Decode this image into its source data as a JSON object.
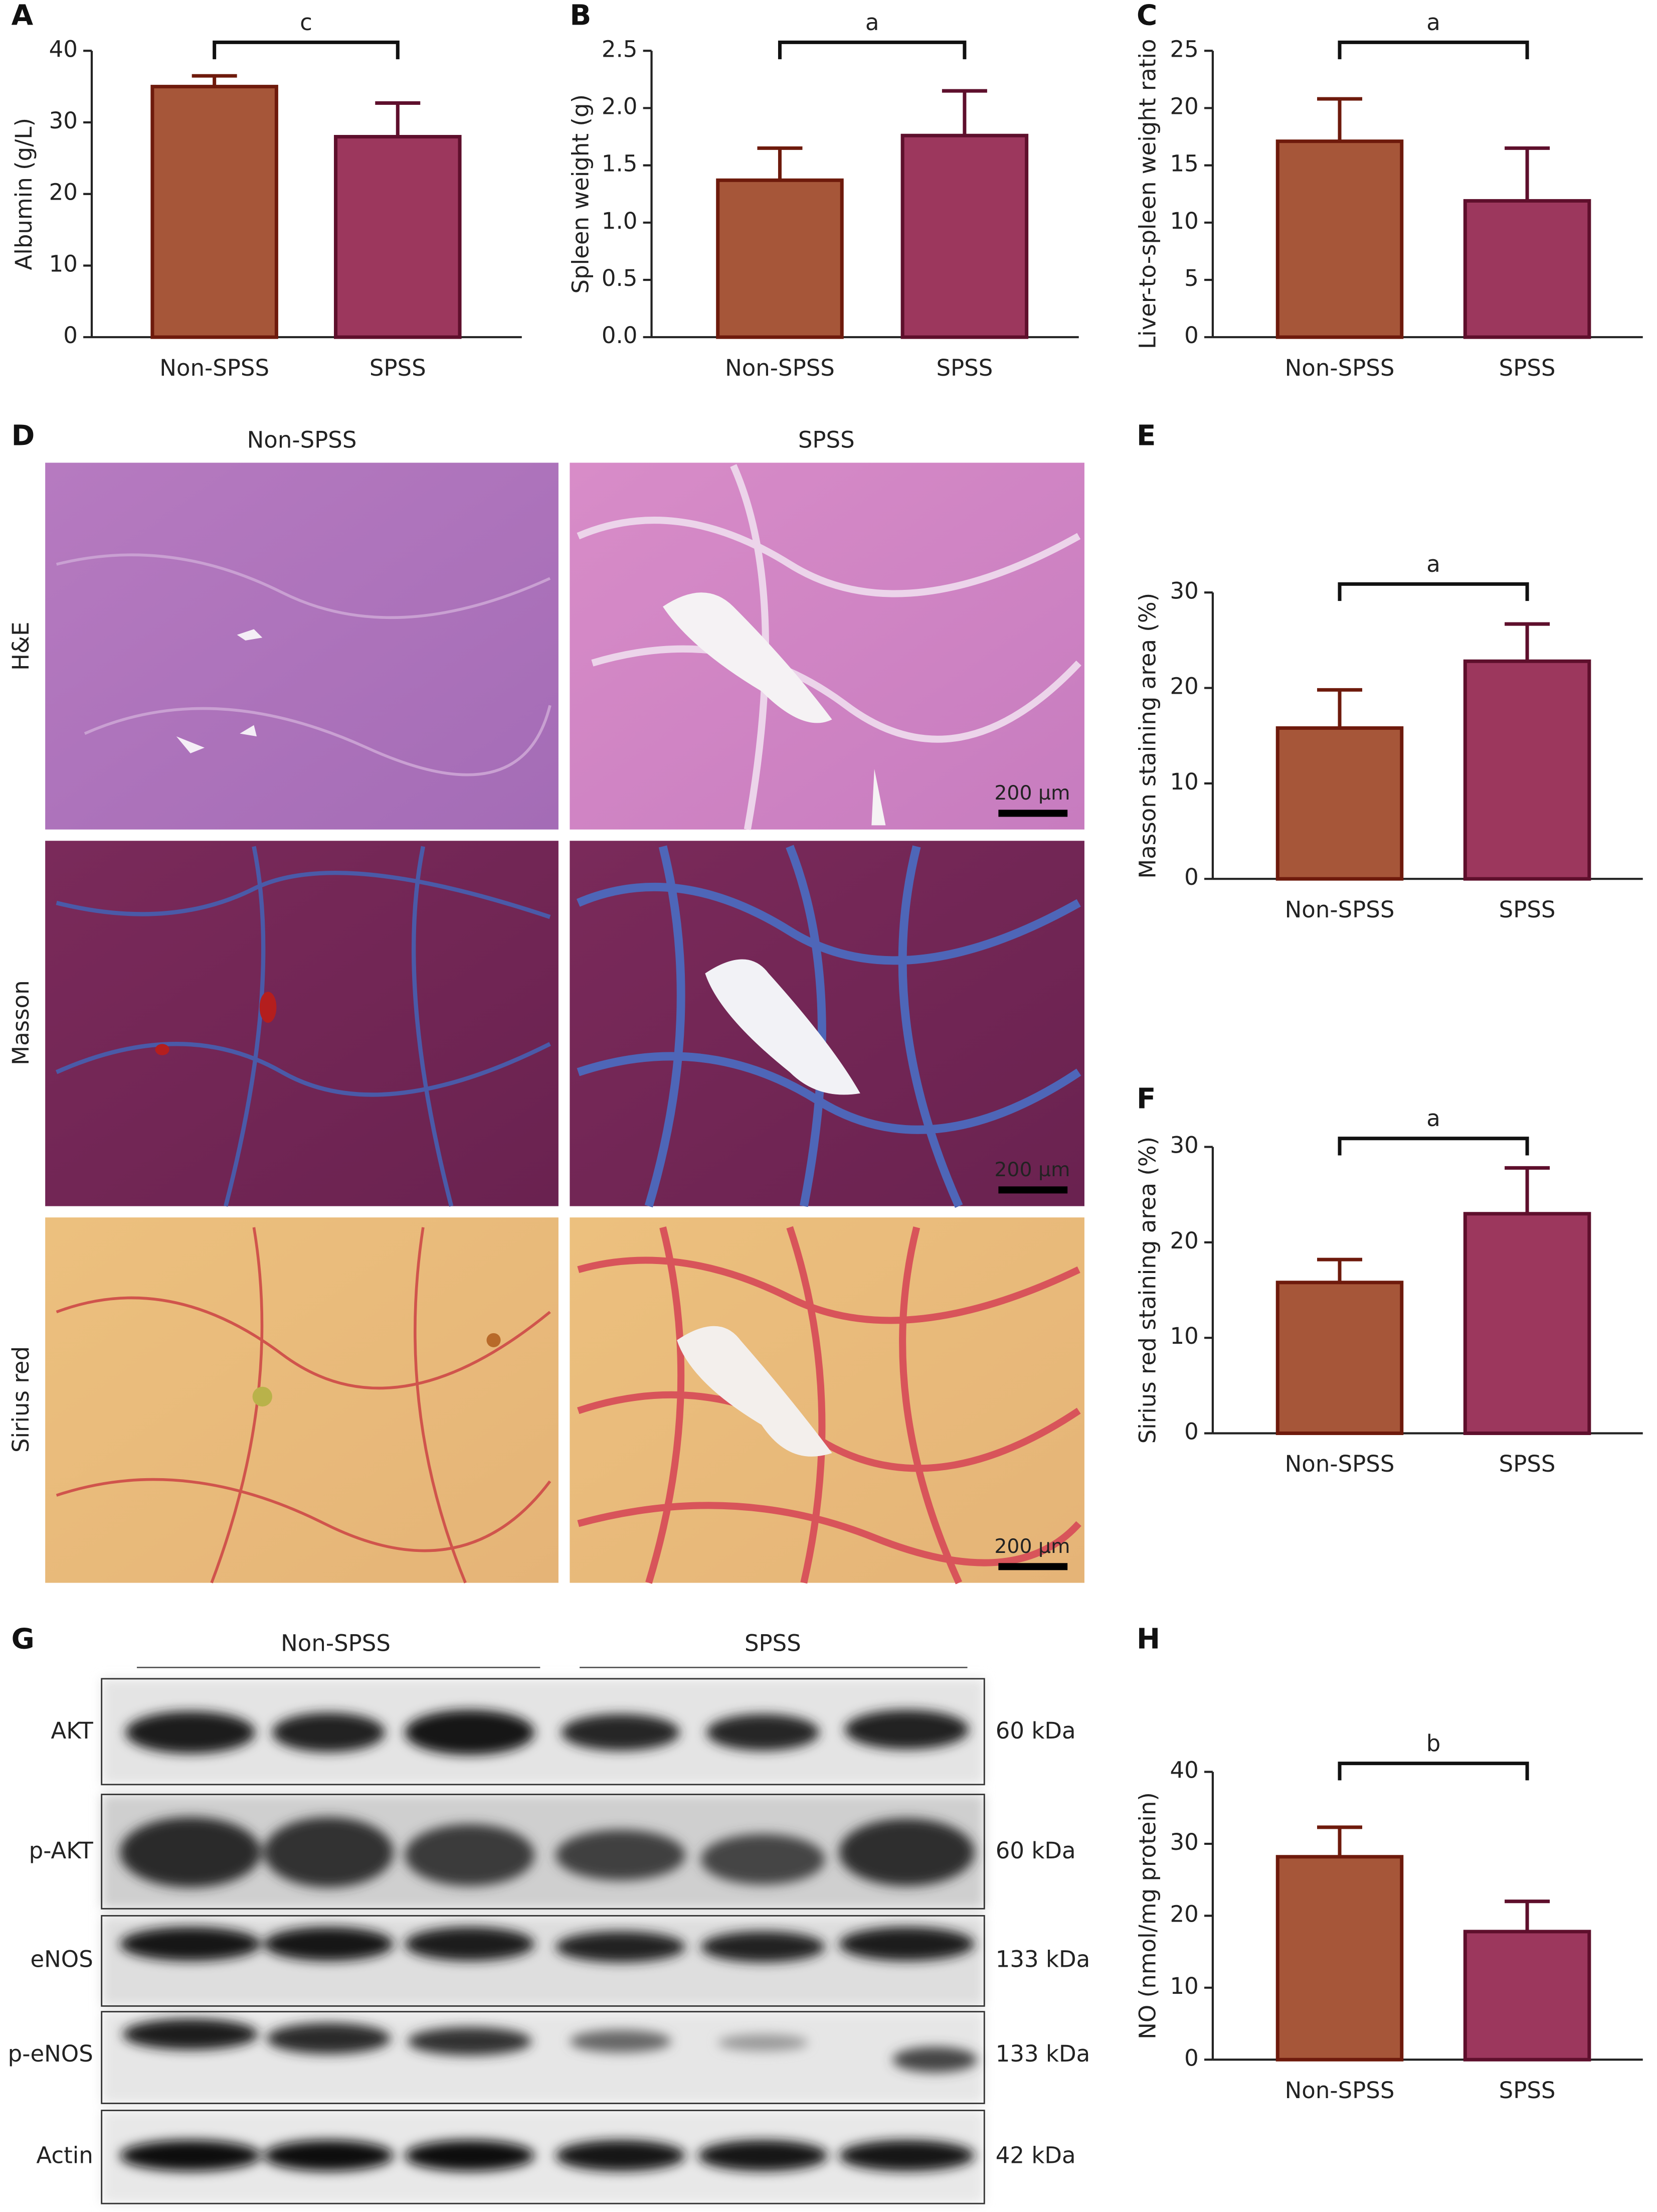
{
  "chart_data": [
    {
      "type": "bar",
      "panel": "A",
      "ylabel": "Albumin (g/L)",
      "categories": [
        "Non-SPSS",
        "SPSS"
      ],
      "values": [
        35,
        28
      ],
      "errors": [
        1.5,
        4.7
      ],
      "colors": [
        "#a65639",
        "#9c375d"
      ],
      "edgecolors": [
        "#6e1a0c",
        "#5e0f2c"
      ],
      "ylim": [
        0,
        40
      ],
      "yticks": [
        0,
        10,
        20,
        30,
        40
      ],
      "significance": "c"
    },
    {
      "type": "bar",
      "panel": "B",
      "ylabel": "Spleen weight (g)",
      "categories": [
        "Non-SPSS",
        "SPSS"
      ],
      "values": [
        1.37,
        1.76
      ],
      "errors": [
        0.28,
        0.39
      ],
      "colors": [
        "#a65639",
        "#9c375d"
      ],
      "edgecolors": [
        "#6e1a0c",
        "#5e0f2c"
      ],
      "ylim": [
        0,
        2.5
      ],
      "yticks": [
        {
          "value": 0,
          "label": "0.0"
        },
        0.5,
        {
          "value": 1,
          "label": "1.0"
        },
        1.5,
        {
          "value": 2,
          "label": "2.0"
        },
        2.5
      ],
      "significance": "a"
    },
    {
      "type": "bar",
      "panel": "C",
      "ylabel": "Liver-to-spleen weight ratio",
      "categories": [
        "Non-SPSS",
        "SPSS"
      ],
      "values": [
        17.1,
        11.9
      ],
      "errors": [
        3.7,
        4.6
      ],
      "colors": [
        "#a65639",
        "#9c375d"
      ],
      "edgecolors": [
        "#6e1a0c",
        "#5e0f2c"
      ],
      "ylim": [
        0,
        25
      ],
      "yticks": [
        0,
        5,
        10,
        15,
        20,
        25
      ],
      "significance": "a"
    },
    {
      "type": "bar",
      "panel": "E",
      "ylabel": "Masson staining area (%)",
      "categories": [
        "Non-SPSS",
        "SPSS"
      ],
      "values": [
        15.8,
        22.8
      ],
      "errors": [
        4.0,
        3.9
      ],
      "colors": [
        "#a65639",
        "#9c375d"
      ],
      "edgecolors": [
        "#6e1a0c",
        "#5e0f2c"
      ],
      "ylim": [
        0,
        30
      ],
      "yticks": [
        0,
        10,
        20,
        30
      ],
      "significance": "a"
    },
    {
      "type": "bar",
      "panel": "F",
      "ylabel": "Sirius red staining area (%)",
      "categories": [
        "Non-SPSS",
        "SPSS"
      ],
      "values": [
        15.8,
        23.0
      ],
      "errors": [
        2.4,
        4.8
      ],
      "colors": [
        "#a65639",
        "#9c375d"
      ],
      "edgecolors": [
        "#6e1a0c",
        "#5e0f2c"
      ],
      "ylim": [
        0,
        30
      ],
      "yticks": [
        0,
        10,
        20,
        30
      ],
      "significance": "a"
    },
    {
      "type": "bar",
      "panel": "H",
      "ylabel": "NO (nmol/mg protein)",
      "categories": [
        "Non-SPSS",
        "SPSS"
      ],
      "values": [
        28.2,
        17.8
      ],
      "errors": [
        4.1,
        4.2
      ],
      "colors": [
        "#a65639",
        "#9c375d"
      ],
      "edgecolors": [
        "#6e1a0c",
        "#5e0f2c"
      ],
      "ylim": [
        0,
        40
      ],
      "yticks": [
        0,
        10,
        20,
        30,
        40
      ],
      "significance": "b"
    }
  ],
  "histology": {
    "panel": "D",
    "columns": [
      "Non-SPSS",
      "SPSS"
    ],
    "rows": [
      "H&E",
      "Masson",
      "Sirius red"
    ],
    "scale_bar": "200 µm"
  },
  "western_blot": {
    "panel": "G",
    "groups": [
      "Non-SPSS",
      "SPSS"
    ],
    "rows": [
      {
        "protein": "AKT",
        "size": "60 kDa"
      },
      {
        "protein": "p-AKT",
        "size": "60 kDa"
      },
      {
        "protein": "eNOS",
        "size": "133 kDa"
      },
      {
        "protein": "p-eNOS",
        "size": "133 kDa"
      },
      {
        "protein": "Actin",
        "size": "42 kDa"
      }
    ]
  }
}
